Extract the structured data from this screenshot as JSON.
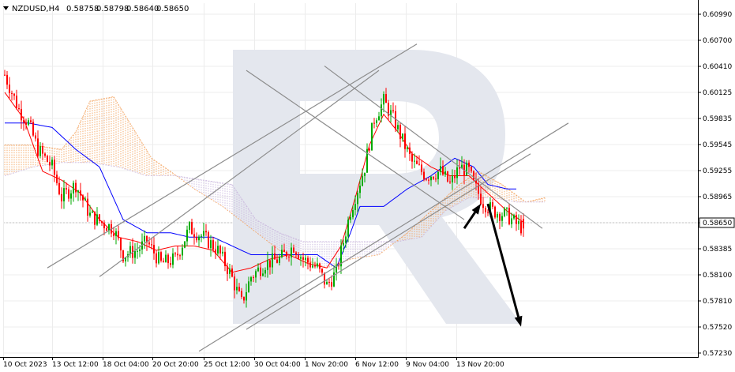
{
  "header": {
    "symbol": "NZDUSD,H4",
    "open": "0.58758",
    "high": "0.58798",
    "low": "0.58640",
    "close": "0.58650"
  },
  "chart_data": {
    "type": "candlestick",
    "symbol": "NZDUSD",
    "timeframe": "H4",
    "current_price": "0.58650",
    "ylim": [
      0.5723,
      0.6109
    ],
    "y_ticks": [
      "0.60990",
      "0.60700",
      "0.60410",
      "0.60125",
      "0.59835",
      "0.59545",
      "0.59255",
      "0.58965",
      "0.58650",
      "0.58385",
      "0.58100",
      "0.57810",
      "0.57520",
      "0.57230"
    ],
    "x_ticks": [
      "10 Oct 2023",
      "13 Oct 12:00",
      "18 Oct 04:00",
      "20 Oct 20:00",
      "25 Oct 12:00",
      "30 Oct 04:00",
      "1 Nov 20:00",
      "6 Nov 12:00",
      "9 Nov 04:00",
      "13 Nov 20:00"
    ],
    "price_path": [
      [
        0,
        0.604
      ],
      [
        6,
        0.6
      ],
      [
        10,
        0.5985
      ],
      [
        14,
        0.5955
      ],
      [
        20,
        0.5935
      ],
      [
        24,
        0.59
      ],
      [
        30,
        0.5915
      ],
      [
        36,
        0.588
      ],
      [
        42,
        0.587
      ],
      [
        46,
        0.5865
      ],
      [
        50,
        0.5835
      ],
      [
        56,
        0.584
      ],
      [
        60,
        0.585
      ],
      [
        66,
        0.5825
      ],
      [
        72,
        0.583
      ],
      [
        78,
        0.5865
      ],
      [
        84,
        0.5855
      ],
      [
        90,
        0.584
      ],
      [
        95,
        0.5815
      ],
      [
        100,
        0.578
      ],
      [
        104,
        0.581
      ],
      [
        110,
        0.5825
      ],
      [
        116,
        0.583
      ],
      [
        122,
        0.5845
      ],
      [
        126,
        0.583
      ],
      [
        132,
        0.582
      ],
      [
        136,
        0.58
      ],
      [
        140,
        0.5815
      ],
      [
        146,
        0.5885
      ],
      [
        152,
        0.5935
      ],
      [
        156,
        0.599
      ],
      [
        160,
        0.601
      ],
      [
        164,
        0.599
      ],
      [
        168,
        0.5965
      ],
      [
        172,
        0.594
      ],
      [
        178,
        0.5925
      ],
      [
        184,
        0.593
      ],
      [
        188,
        0.5915
      ],
      [
        192,
        0.5935
      ],
      [
        196,
        0.593
      ],
      [
        198,
        0.5915
      ],
      [
        202,
        0.5895
      ],
      [
        206,
        0.5885
      ],
      [
        212,
        0.588
      ],
      [
        216,
        0.587
      ],
      [
        219,
        0.5865
      ]
    ],
    "indicators": {
      "tenkan_sen": [
        [
          0,
          0.602
        ],
        [
          8,
          0.599
        ],
        [
          16,
          0.593
        ],
        [
          24,
          0.592
        ],
        [
          32,
          0.5905
        ],
        [
          40,
          0.5875
        ],
        [
          48,
          0.5855
        ],
        [
          56,
          0.585
        ],
        [
          64,
          0.584
        ],
        [
          72,
          0.5845
        ],
        [
          80,
          0.5845
        ],
        [
          88,
          0.584
        ],
        [
          96,
          0.5815
        ],
        [
          104,
          0.582
        ],
        [
          112,
          0.583
        ],
        [
          120,
          0.5835
        ],
        [
          128,
          0.5825
        ],
        [
          136,
          0.582
        ],
        [
          142,
          0.5845
        ],
        [
          148,
          0.59
        ],
        [
          154,
          0.596
        ],
        [
          160,
          0.5995
        ],
        [
          166,
          0.5975
        ],
        [
          172,
          0.595
        ],
        [
          180,
          0.5935
        ],
        [
          188,
          0.5925
        ],
        [
          196,
          0.5925
        ],
        [
          204,
          0.5905
        ],
        [
          212,
          0.5885
        ],
        [
          219,
          0.5872
        ]
      ],
      "kijun_sen": [
        [
          0,
          0.5985
        ],
        [
          10,
          0.5985
        ],
        [
          20,
          0.598
        ],
        [
          30,
          0.5955
        ],
        [
          40,
          0.5935
        ],
        [
          50,
          0.5875
        ],
        [
          60,
          0.586
        ],
        [
          70,
          0.586
        ],
        [
          78,
          0.5855
        ],
        [
          88,
          0.5855
        ],
        [
          96,
          0.5845
        ],
        [
          104,
          0.5835
        ],
        [
          112,
          0.5835
        ],
        [
          122,
          0.5835
        ],
        [
          132,
          0.5835
        ],
        [
          140,
          0.582
        ],
        [
          146,
          0.586
        ],
        [
          150,
          0.589
        ],
        [
          160,
          0.589
        ],
        [
          170,
          0.591
        ],
        [
          180,
          0.5925
        ],
        [
          190,
          0.5945
        ],
        [
          198,
          0.5935
        ],
        [
          204,
          0.5915
        ],
        [
          212,
          0.591
        ],
        [
          216,
          0.591
        ]
      ]
    },
    "ichimoku_cloud": {
      "span_a": [
        [
          0,
          0.596
        ],
        [
          12,
          0.596
        ],
        [
          24,
          0.5955
        ],
        [
          30,
          0.5975
        ],
        [
          36,
          0.601
        ],
        [
          46,
          0.6015
        ],
        [
          54,
          0.598
        ],
        [
          62,
          0.5945
        ],
        [
          70,
          0.593
        ],
        [
          80,
          0.591
        ],
        [
          92,
          0.589
        ],
        [
          104,
          0.5865
        ],
        [
          116,
          0.584
        ],
        [
          126,
          0.583
        ],
        [
          136,
          0.582
        ],
        [
          146,
          0.583
        ],
        [
          158,
          0.5835
        ],
        [
          170,
          0.586
        ],
        [
          182,
          0.589
        ],
        [
          192,
          0.5915
        ],
        [
          200,
          0.593
        ],
        [
          210,
          0.5915
        ],
        [
          220,
          0.5895
        ],
        [
          228,
          0.59
        ]
      ],
      "span_b": [
        [
          0,
          0.5925
        ],
        [
          12,
          0.5935
        ],
        [
          24,
          0.594
        ],
        [
          36,
          0.594
        ],
        [
          48,
          0.5935
        ],
        [
          60,
          0.5925
        ],
        [
          72,
          0.5925
        ],
        [
          84,
          0.592
        ],
        [
          96,
          0.5915
        ],
        [
          106,
          0.5875
        ],
        [
          116,
          0.586
        ],
        [
          126,
          0.585
        ],
        [
          136,
          0.585
        ],
        [
          146,
          0.585
        ],
        [
          156,
          0.585
        ],
        [
          166,
          0.585
        ],
        [
          176,
          0.5855
        ],
        [
          186,
          0.5885
        ],
        [
          196,
          0.59
        ],
        [
          206,
          0.59
        ],
        [
          216,
          0.5895
        ],
        [
          228,
          0.5895
        ]
      ]
    },
    "trend_lines": [
      [
        [
          18,
          0.582
        ],
        [
          174,
          0.6075
        ]
      ],
      [
        [
          40,
          0.581
        ],
        [
          158,
          0.6045
        ]
      ],
      [
        [
          82,
          0.5725
        ],
        [
          238,
          0.5985
        ]
      ],
      [
        [
          102,
          0.575
        ],
        [
          222,
          0.595
        ]
      ],
      [
        [
          102,
          0.6045
        ],
        [
          194,
          0.5875
        ]
      ],
      [
        [
          135,
          0.605
        ],
        [
          227,
          0.5865
        ]
      ]
    ],
    "forecast_arrows": [
      {
        "from": [
          194,
          0.5865
        ],
        "to": [
          201,
          0.5893
        ]
      },
      {
        "from": [
          204,
          0.5893
        ],
        "to": [
          218,
          0.5753
        ]
      }
    ],
    "colors": {
      "bull_candle": "#00aa00",
      "bear_candle": "#ff0000",
      "tenkan_sen": "#ff0000",
      "kijun_sen": "#0000ff",
      "cloud_bull": "#f4a460",
      "cloud_bear": "#c9b6dd",
      "trend_line": "#8c8c8c",
      "arrow": "#000000",
      "grid": "#ececec"
    },
    "grid": true,
    "watermark": "R"
  }
}
